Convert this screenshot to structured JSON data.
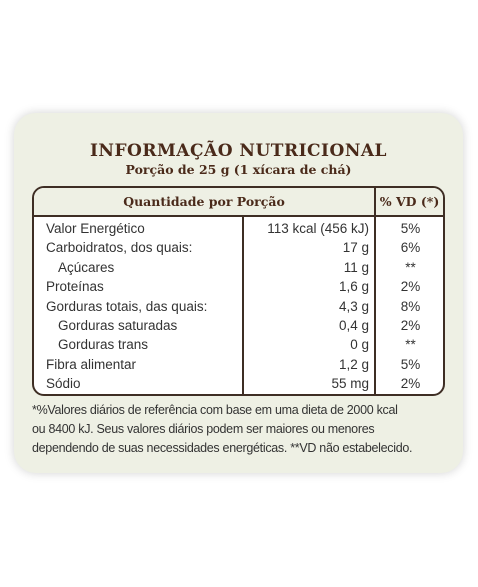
{
  "title": "INFORMAÇÃO NUTRICIONAL",
  "subtitle": "Porção de 25 g (1 xícara de chá)",
  "headers": {
    "quantity": "Quantidade por Porção",
    "vd": "% VD (*)"
  },
  "rows": [
    {
      "name": "Valor Energético",
      "qty": "113 kcal (456 kJ)",
      "vd": "5%"
    },
    {
      "name": "Carboidratos, dos quais:",
      "qty": "17 g",
      "vd": "6%"
    },
    {
      "name": "Açúcares",
      "qty": "11 g",
      "vd": "**"
    },
    {
      "name": "Proteínas",
      "qty": "1,6 g",
      "vd": "2%"
    },
    {
      "name": "Gorduras totais, das quais:",
      "qty": "4,3 g",
      "vd": "8%"
    },
    {
      "name": "Gorduras saturadas",
      "qty": "0,4 g",
      "vd": "2%"
    },
    {
      "name": "Gorduras trans",
      "qty": "0 g",
      "vd": "**"
    },
    {
      "name": "Fibra alimentar",
      "qty": "1,2 g",
      "vd": "5%"
    },
    {
      "name": "Sódio",
      "qty": "55 mg",
      "vd": "2%"
    }
  ],
  "footnote": {
    "line1": "*%Valores diários de referência com base em uma dieta de 2000 kcal",
    "line2": "ou 8400 kJ. Seus valores diários podem ser maiores ou menores",
    "line3": "dependendo de suas necessidades energéticas. **VD não estabelecido."
  }
}
